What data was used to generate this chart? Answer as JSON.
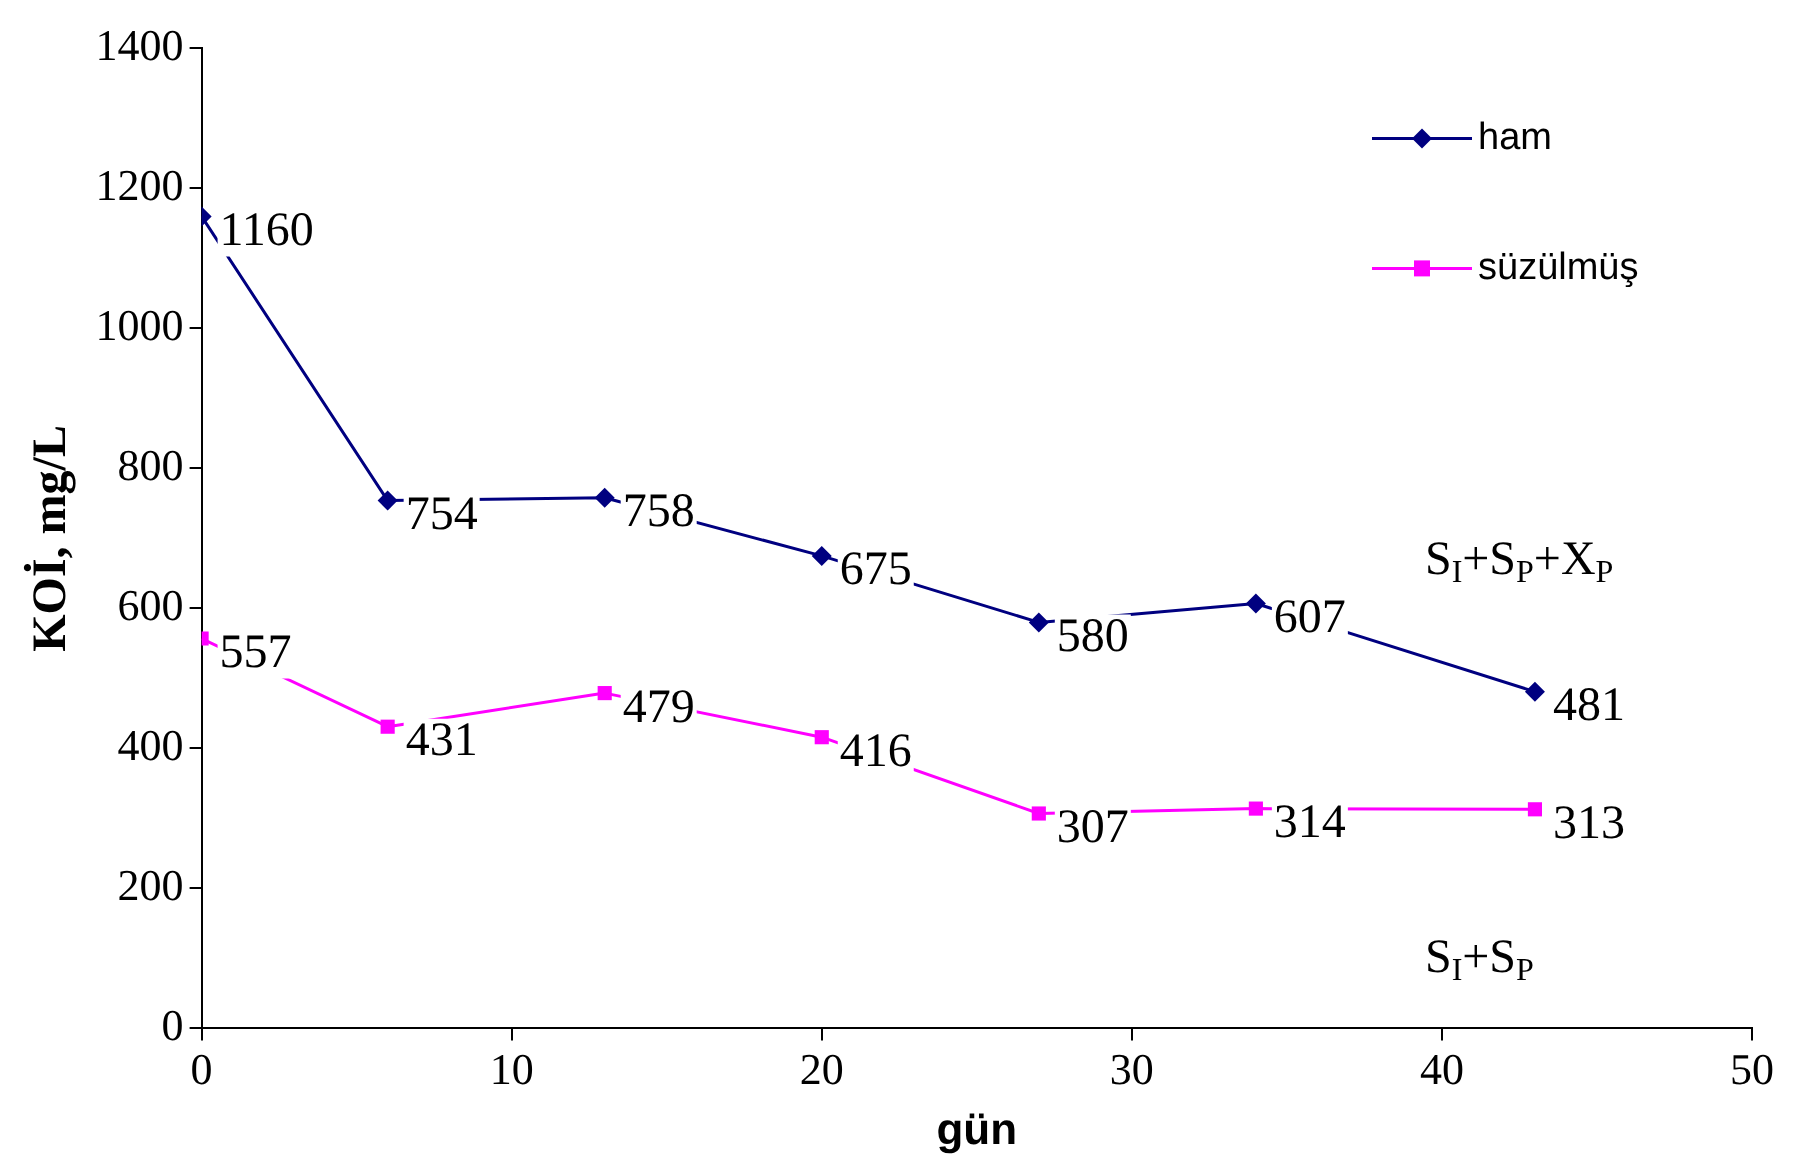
{
  "chart_data": {
    "type": "line",
    "xlabel": "gün",
    "ylabel": "KOİ, mg/L",
    "x": [
      0,
      6,
      13,
      20,
      27,
      34,
      43
    ],
    "series": [
      {
        "name": "ham",
        "color": "#000080",
        "marker": "diamond",
        "values": [
          1160,
          754,
          758,
          675,
          580,
          607,
          481
        ]
      },
      {
        "name": "süzülmüş",
        "color": "#ff00ff",
        "marker": "square",
        "values": [
          557,
          431,
          479,
          416,
          307,
          314,
          313
        ]
      }
    ],
    "xlim": [
      0,
      50
    ],
    "xticks": [
      0,
      10,
      20,
      30,
      40,
      50
    ],
    "ylim": [
      0,
      1400
    ],
    "yticks": [
      0,
      200,
      400,
      600,
      800,
      1000,
      1200,
      1400
    ],
    "grid": false,
    "legend": "top right",
    "data_labels": true,
    "line_style": "solid",
    "annotations": [
      "S$_{I}$+S$_{P}$+X$_{P}$",
      "S$_{I}$+S$_{P}$"
    ]
  }
}
